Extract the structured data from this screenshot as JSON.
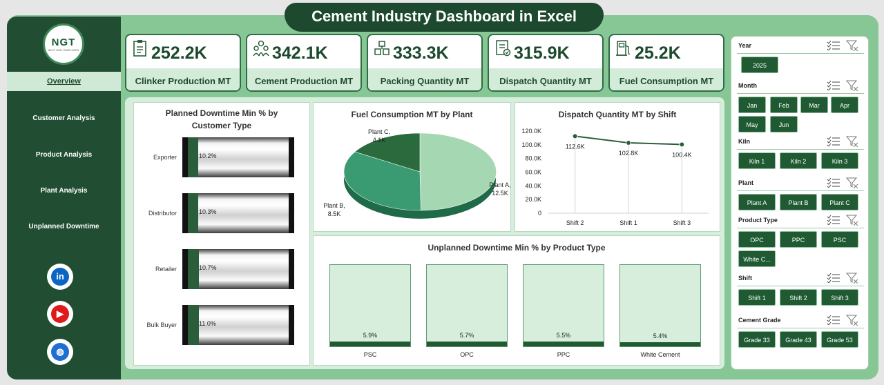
{
  "title": "Cement Industry Dashboard in Excel",
  "logo": {
    "text": "NGT",
    "sub": "NEXT GEN TEMPLATES"
  },
  "nav": [
    {
      "label": "Overview",
      "active": true
    },
    {
      "label": "Customer Analysis",
      "active": false
    },
    {
      "label": "Product Analysis",
      "active": false
    },
    {
      "label": "Plant Analysis",
      "active": false
    },
    {
      "label": "Unplanned Downtime",
      "active": false
    }
  ],
  "social": [
    {
      "icon": "linkedin-icon",
      "glyph": "in",
      "color": "#0a66c2"
    },
    {
      "icon": "youtube-icon",
      "glyph": "▶",
      "color": "#e01a1a"
    },
    {
      "icon": "globe-icon",
      "glyph": "◍",
      "color": "#1e6fd1"
    }
  ],
  "kpis": [
    {
      "value": "252.2K",
      "label": "Clinker Production MT",
      "icon": "clipboard-icon"
    },
    {
      "value": "342.1K",
      "label": "Cement Production MT",
      "icon": "people-icon"
    },
    {
      "value": "333.3K",
      "label": "Packing Quantity MT",
      "icon": "packing-icon"
    },
    {
      "value": "315.9K",
      "label": "Dispatch Quantity MT",
      "icon": "checklist-icon"
    },
    {
      "value": "25.2K",
      "label": "Fuel Consumption MT",
      "icon": "fuel-pump-icon"
    }
  ],
  "charts": {
    "downtime_customer": {
      "title_line1": "Planned Downtime Min % by",
      "title_line2": "Customer Type"
    },
    "fuel_plant": {
      "title": "Fuel Consumption MT by Plant"
    },
    "dispatch_shift": {
      "title": "Dispatch Quantity MT by Shift"
    },
    "downtime_product": {
      "title": "Unplanned Downtime Min % by Product Type"
    }
  },
  "chart_data": [
    {
      "type": "bar",
      "orientation": "horizontal",
      "title": "Planned Downtime Min % by Customer Type",
      "categories": [
        "Exporter",
        "Distributor",
        "Retailer",
        "Bulk Buyer"
      ],
      "values": [
        10.2,
        10.3,
        10.7,
        11.0
      ],
      "labels": [
        "10.2%",
        "10.3%",
        "10.7%",
        "11.0%"
      ]
    },
    {
      "type": "pie",
      "title": "Fuel Consumption MT by Plant",
      "slices": [
        {
          "name": "Plant A",
          "value": 12.5,
          "label": "12.5K",
          "color": "#a6d7b3"
        },
        {
          "name": "Plant B",
          "value": 8.5,
          "label": "8.5K",
          "color": "#3a9b73"
        },
        {
          "name": "Plant C",
          "value": 4.1,
          "label": "4.1K",
          "color": "#2a6a3c"
        }
      ]
    },
    {
      "type": "line",
      "title": "Dispatch Quantity MT by Shift",
      "categories": [
        "Shift 2",
        "Shift 1",
        "Shift 3"
      ],
      "values": [
        112.6,
        102.8,
        100.4
      ],
      "labels": [
        "112.6K",
        "102.8K",
        "100.4K"
      ],
      "ylim": [
        0,
        120
      ],
      "yticks": [
        "0",
        "20.0K",
        "40.0K",
        "60.0K",
        "80.0K",
        "100.0K",
        "120.0K"
      ],
      "grid": true
    },
    {
      "type": "bar",
      "title": "Unplanned Downtime Min % by Product Type",
      "categories": [
        "PSC",
        "OPC",
        "PPC",
        "White Cement"
      ],
      "values": [
        5.9,
        5.7,
        5.5,
        5.4
      ],
      "labels": [
        "5.9%",
        "5.7%",
        "5.5%",
        "5.4%"
      ],
      "ylim": [
        0,
        100
      ]
    }
  ],
  "slicers": [
    {
      "title": "Year",
      "items": [
        "2025"
      ]
    },
    {
      "title": "Month",
      "items": [
        "Jan",
        "Feb",
        "Mar",
        "Apr",
        "May",
        "Jun"
      ]
    },
    {
      "title": "Kiln",
      "items": [
        "Kiln 1",
        "Kiln 2",
        "Kiln 3"
      ]
    },
    {
      "title": "Plant",
      "items": [
        "Plant A",
        "Plant B",
        "Plant C"
      ]
    },
    {
      "title": "Product Type",
      "items": [
        "OPC",
        "PPC",
        "PSC",
        "White C..."
      ]
    },
    {
      "title": "Shift",
      "items": [
        "Shift 1",
        "Shift 2",
        "Shift 3"
      ]
    },
    {
      "title": "Cement Grade",
      "items": [
        "Grade 33",
        "Grade 43",
        "Grade 53"
      ]
    }
  ]
}
